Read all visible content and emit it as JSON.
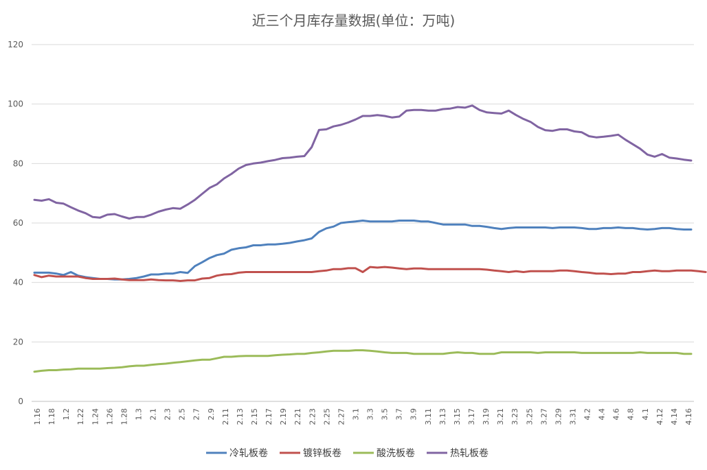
{
  "chart_data": {
    "type": "line",
    "title": "近三个月库存量数据(单位：万吨)",
    "xlabel": "",
    "ylabel": "",
    "ylim": [
      0,
      120
    ],
    "yticks": [
      0,
      20,
      40,
      60,
      80,
      100,
      120
    ],
    "grid": true,
    "legend_position": "bottom",
    "x_tick_labels": [
      "1.16",
      "1.18",
      "1.2",
      "1.22",
      "1.24",
      "1.26",
      "1.28",
      "1.3",
      "2.1",
      "2.3",
      "2.5",
      "2.7",
      "2.9",
      "2.11",
      "2.13",
      "2.15",
      "2.17",
      "2.19",
      "2.21",
      "2.23",
      "2.25",
      "2.27",
      "3.1",
      "3.3",
      "3.5",
      "3.7",
      "3.9",
      "3.11",
      "3.13",
      "3.15",
      "3.17",
      "3.19",
      "3.21",
      "3.23",
      "3.25",
      "3.27",
      "3.29",
      "3.31",
      "4.2",
      "4.4",
      "4.6",
      "4.8",
      "4.1",
      "4.12",
      "4.14",
      "4.16"
    ],
    "series": [
      {
        "name": "冷轧板卷",
        "color": "#4F81BD",
        "values": [
          43.3,
          43.3,
          43.3,
          43,
          42.5,
          43.5,
          42.3,
          41.8,
          41.5,
          41.2,
          41.2,
          41,
          41,
          41.2,
          41.5,
          42,
          42.7,
          42.7,
          43,
          43,
          43.5,
          43.2,
          45.5,
          46.8,
          48.2,
          49.2,
          49.7,
          51,
          51.5,
          51.8,
          52.5,
          52.5,
          52.8,
          52.8,
          53,
          53.3,
          53.8,
          54.2,
          54.8,
          57,
          58.2,
          58.8,
          60,
          60.3,
          60.5,
          60.8,
          60.5,
          60.5,
          60.5,
          60.5,
          60.8,
          60.8,
          60.8,
          60.5,
          60.5,
          60,
          59.5,
          59.5,
          59.5,
          59.5,
          59,
          59,
          58.7,
          58.3,
          58,
          58.3,
          58.5,
          58.5,
          58.5,
          58.5,
          58.5,
          58.3,
          58.5,
          58.5,
          58.5,
          58.3,
          58,
          58,
          58.3,
          58.3,
          58.5,
          58.3,
          58.3,
          58,
          57.8,
          58,
          58.3,
          58.3,
          58,
          57.8,
          57.8
        ]
      },
      {
        "name": "镀锌板卷",
        "color": "#C0504D",
        "values": [
          42.5,
          41.8,
          42.3,
          42,
          42,
          42,
          42,
          41.5,
          41.2,
          41.2,
          41.2,
          41.3,
          41,
          40.8,
          40.8,
          40.8,
          41,
          40.8,
          40.7,
          40.7,
          40.5,
          40.7,
          40.7,
          41.3,
          41.5,
          42.3,
          42.7,
          42.8,
          43.3,
          43.5,
          43.5,
          43.5,
          43.5,
          43.5,
          43.5,
          43.5,
          43.5,
          43.5,
          43.5,
          43.8,
          44,
          44.5,
          44.5,
          44.8,
          44.8,
          43.5,
          45.2,
          45,
          45.2,
          45,
          44.7,
          44.5,
          44.7,
          44.7,
          44.5,
          44.5,
          44.5,
          44.5,
          44.5,
          44.5,
          44.5,
          44.5,
          44.3,
          44,
          43.8,
          43.5,
          43.8,
          43.5,
          43.8,
          43.8,
          43.8,
          43.8,
          44,
          44,
          43.8,
          43.5,
          43.3,
          43,
          43,
          42.8,
          43,
          43,
          43.5,
          43.5,
          43.8,
          44,
          43.8,
          43.8,
          44,
          44,
          44,
          43.8,
          43.5
        ]
      },
      {
        "name": "酸洗板卷",
        "color": "#9BBB59",
        "values": [
          10,
          10.3,
          10.5,
          10.5,
          10.7,
          10.8,
          11,
          11,
          11,
          11,
          11.2,
          11.3,
          11.5,
          11.8,
          12,
          12,
          12.3,
          12.5,
          12.7,
          13,
          13.2,
          13.5,
          13.8,
          14,
          14,
          14.5,
          15,
          15,
          15.2,
          15.3,
          15.3,
          15.3,
          15.3,
          15.5,
          15.7,
          15.8,
          16,
          16,
          16.3,
          16.5,
          16.8,
          17,
          17,
          17,
          17.2,
          17.2,
          17,
          16.8,
          16.5,
          16.3,
          16.3,
          16.3,
          16,
          16,
          16,
          16,
          16,
          16.3,
          16.5,
          16.3,
          16.3,
          16,
          16,
          16,
          16.5,
          16.5,
          16.5,
          16.5,
          16.5,
          16.3,
          16.5,
          16.5,
          16.5,
          16.5,
          16.5,
          16.3,
          16.3,
          16.3,
          16.3,
          16.3,
          16.3,
          16.3,
          16.3,
          16.5,
          16.3,
          16.3,
          16.3,
          16.3,
          16.3,
          16,
          16
        ]
      },
      {
        "name": "热轧板卷",
        "color": "#8064A2",
        "values": [
          67.8,
          67.5,
          68,
          66.8,
          66.5,
          65.3,
          64.2,
          63.3,
          62,
          61.8,
          62.8,
          63,
          62.2,
          61.5,
          62,
          62,
          62.8,
          63.8,
          64.5,
          65,
          64.8,
          66.2,
          67.8,
          69.8,
          71.8,
          73,
          75,
          76.5,
          78.3,
          79.5,
          80,
          80.3,
          80.8,
          81.2,
          81.8,
          82,
          82.3,
          82.5,
          85.5,
          91.3,
          91.5,
          92.5,
          93,
          93.8,
          94.8,
          96,
          96,
          96.3,
          96,
          95.5,
          95.8,
          97.8,
          98,
          98,
          97.8,
          97.8,
          98.3,
          98.5,
          99,
          98.8,
          99.5,
          98,
          97.2,
          97,
          96.8,
          97.8,
          96.3,
          95,
          94,
          92.3,
          91.2,
          91,
          91.5,
          91.5,
          90.8,
          90.5,
          89.2,
          88.8,
          89,
          89.3,
          89.7,
          88,
          86.5,
          85,
          83,
          82.3,
          83.2,
          82,
          81.7,
          81.3,
          81
        ]
      }
    ]
  }
}
